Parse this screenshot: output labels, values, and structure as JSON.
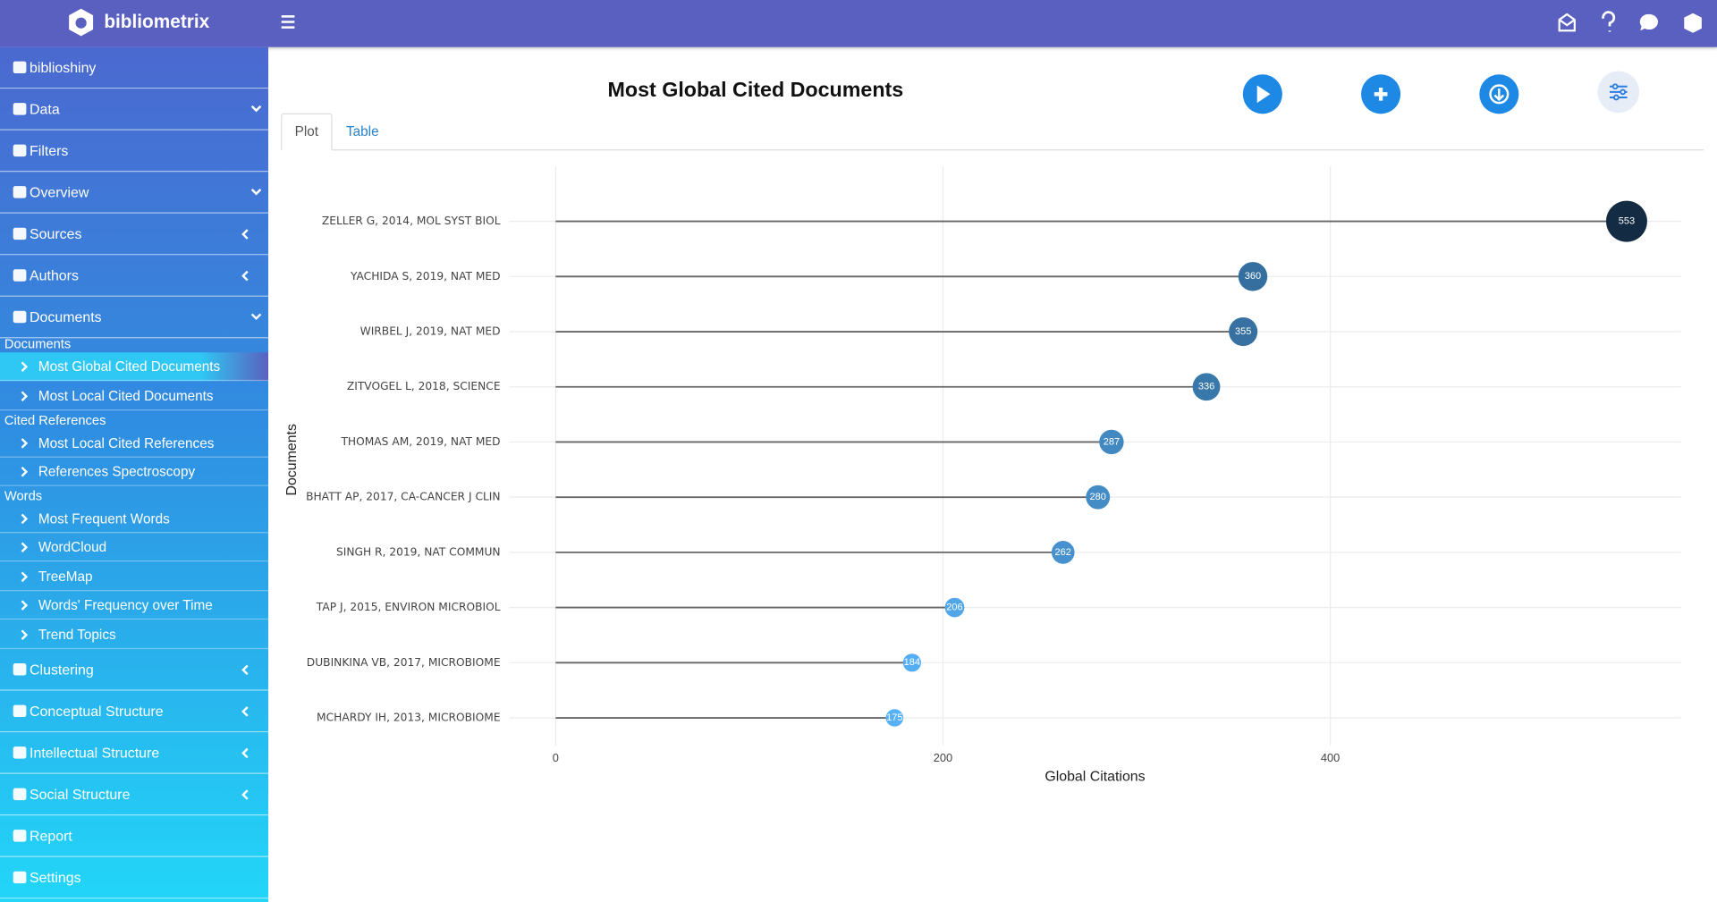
{
  "header": {
    "brand": "bibliometrix"
  },
  "sidebar": {
    "items": [
      "biblioshiny",
      "Data",
      "Filters",
      "Overview",
      "Sources",
      "Authors",
      "Documents",
      "Documents",
      "Most Global Cited Documents",
      "Most Local Cited Documents",
      "Cited References",
      "Most Local Cited References",
      "References Spectroscopy",
      "Words",
      "Most Frequent Words",
      "WordCloud",
      "TreeMap",
      "Words' Frequency over Time",
      "Trend Topics",
      "Clustering",
      "Conceptual Structure",
      "Intellectual Structure",
      "Social Structure",
      "Report",
      "Settings"
    ]
  },
  "page": {
    "title": "Most Global Cited Documents",
    "tabs": [
      "Plot",
      "Table"
    ]
  },
  "chart_data": {
    "type": "lollipop",
    "categories": [
      "ZELLER G, 2014, MOL SYST BIOL",
      "YACHIDA S, 2019, NAT MED",
      "WIRBEL J, 2019, NAT MED",
      "ZITVOGEL L, 2018, SCIENCE",
      "THOMAS AM, 2019, NAT MED",
      "BHATT AP, 2017, CA-CANCER J CLIN",
      "SINGH R, 2019, NAT COMMUN",
      "TAP J, 2015, ENVIRON MICROBIOL",
      "DUBINKINA VB, 2017, MICROBIOME",
      "MCHARDY IH, 2013, MICROBIOME"
    ],
    "values": [
      553,
      360,
      355,
      336,
      287,
      280,
      262,
      206,
      184,
      175
    ],
    "xlim": [
      -24,
      581
    ],
    "xticks": [
      0,
      200,
      400
    ],
    "xlabel": "Global Citations",
    "ylabel": "Documents",
    "grid": true,
    "color_low": "#56B1F7",
    "color_high": "#132B43",
    "stem_color": "#666666"
  }
}
